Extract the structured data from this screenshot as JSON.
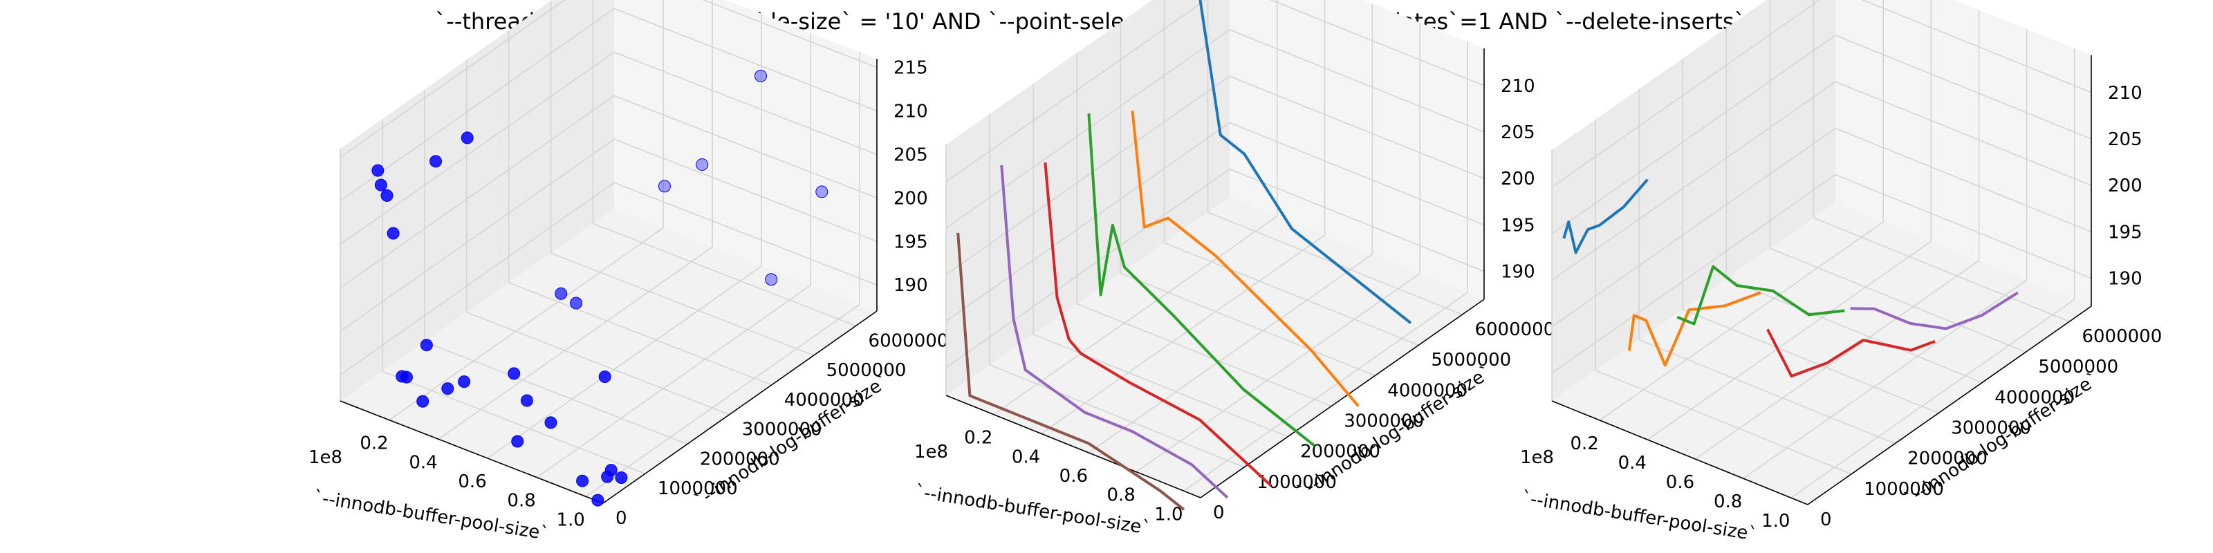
{
  "title": "`--threads` = '100' AND `--table-size` = '10'  AND `--point-selects`=1 AND `--index-updates`=1 AND `--delete-inserts`=1",
  "chart_data": [
    {
      "type": "scatter",
      "xlabel": "`--innodb-buffer-pool-size`",
      "ylabel": "`--innodb-log-buffer-size`",
      "x_offset": "1e8",
      "x_ticks": [
        "0.2",
        "0.4",
        "0.6",
        "0.8",
        "1.0"
      ],
      "y_ticks": [
        "0",
        "1000000",
        "2000000",
        "3000000",
        "4000000",
        "5000000",
        "6000000"
      ],
      "z_ticks": [
        "190",
        "195",
        "200",
        "205",
        "210",
        "215"
      ],
      "zlim": [
        187,
        216
      ],
      "point_color": "#0000ff",
      "points": [
        {
          "x": 0.05,
          "y": 600000,
          "z": 212
        },
        {
          "x": 0.07,
          "y": 700000,
          "z": 209
        },
        {
          "x": 0.08,
          "y": 500000,
          "z": 211
        },
        {
          "x": 0.13,
          "y": 500000,
          "z": 206
        },
        {
          "x": 0.2,
          "y": 1100000,
          "z": 213
        },
        {
          "x": 0.26,
          "y": 1500000,
          "z": 215
        },
        {
          "x": 0.15,
          "y": 700000,
          "z": 189
        },
        {
          "x": 0.18,
          "y": 1000000,
          "z": 192
        },
        {
          "x": 0.2,
          "y": 300000,
          "z": 191
        },
        {
          "x": 0.25,
          "y": 500000,
          "z": 188
        },
        {
          "x": 0.3,
          "y": 800000,
          "z": 189
        },
        {
          "x": 0.35,
          "y": 900000,
          "z": 190
        },
        {
          "x": 0.45,
          "y": 1500000,
          "z": 190
        },
        {
          "x": 0.47,
          "y": 2500000,
          "z": 196
        },
        {
          "x": 0.48,
          "y": 2800000,
          "z": 194
        },
        {
          "x": 0.52,
          "y": 1400000,
          "z": 188
        },
        {
          "x": 0.55,
          "y": 1000000,
          "z": 185
        },
        {
          "x": 0.6,
          "y": 1500000,
          "z": 186
        },
        {
          "x": 0.7,
          "y": 2200000,
          "z": 190
        },
        {
          "x": 0.9,
          "y": 500000,
          "z": 186
        },
        {
          "x": 0.95,
          "y": 800000,
          "z": 186
        },
        {
          "x": 0.98,
          "y": 400000,
          "z": 185
        },
        {
          "x": 0.99,
          "y": 900000,
          "z": 186
        },
        {
          "x": 1.0,
          "y": 600000,
          "z": 188
        },
        {
          "x": 0.6,
          "y": 4200000,
          "z": 204
        },
        {
          "x": 0.65,
          "y": 4800000,
          "z": 205
        },
        {
          "x": 0.7,
          "y": 5900000,
          "z": 212
        },
        {
          "x": 1.0,
          "y": 5600000,
          "z": 203
        },
        {
          "x": 1.0,
          "y": 4400000,
          "z": 197
        }
      ]
    },
    {
      "type": "line",
      "xlabel": "`--innodb-buffer-pool-size`",
      "ylabel": "`--innodb-log-buffer-size`",
      "x_offset": "1e8",
      "x_ticks": [
        "0.2",
        "0.4",
        "0.6",
        "0.8",
        "1.0"
      ],
      "y_ticks": [
        "0",
        "1000000",
        "2000000",
        "3000000",
        "4000000",
        "5000000",
        "6000000"
      ],
      "z_ticks": [
        "190",
        "195",
        "200",
        "205",
        "210"
      ],
      "zlim": [
        187,
        214
      ],
      "series": [
        {
          "color": "#1f77b4",
          "x": [
            0.1,
            0.2,
            0.3,
            0.5,
            0.8,
            1.0
          ],
          "y": [
            5200000,
            5200000,
            5200000,
            5200000,
            5200000,
            5200000
          ],
          "z": [
            216,
            200,
            199,
            193,
            190,
            188
          ]
        },
        {
          "color": "#ff7f0e",
          "x": [
            0.05,
            0.1,
            0.2,
            0.4,
            0.6,
            0.8,
            1.0
          ],
          "y": [
            4000000,
            4000000,
            4000000,
            4000000,
            4000000,
            4000000,
            4000000
          ],
          "z": [
            205,
            193,
            195,
            193,
            190,
            187,
            183
          ]
        },
        {
          "color": "#2ca02c",
          "x": [
            0.05,
            0.1,
            0.15,
            0.2,
            0.4,
            0.7,
            1.0
          ],
          "y": [
            3000000,
            3000000,
            3000000,
            3000000,
            3000000,
            3000000,
            3000000
          ],
          "z": [
            208,
            189,
            197,
            193,
            190,
            185,
            182
          ]
        },
        {
          "color": "#d62728",
          "x": [
            0.05,
            0.1,
            0.15,
            0.2,
            0.4,
            0.7,
            1.0
          ],
          "y": [
            2000000,
            2000000,
            2000000,
            2000000,
            2000000,
            2000000,
            2000000
          ],
          "z": [
            206,
            192,
            188,
            187,
            186,
            185,
            181
          ]
        },
        {
          "color": "#9467bd",
          "x": [
            0.05,
            0.1,
            0.15,
            0.4,
            0.6,
            0.85,
            1.0
          ],
          "y": [
            1000000,
            1000000,
            1000000,
            1000000,
            1000000,
            1000000,
            1000000
          ],
          "z": [
            209,
            193,
            188,
            186,
            186,
            185,
            183
          ]
        },
        {
          "color": "#8c564b",
          "x": [
            0.05,
            0.1,
            0.3,
            0.6,
            0.9,
            1.0
          ],
          "y": [
            0,
            0,
            0,
            0,
            0,
            0
          ],
          "z": [
            205,
            188,
            188,
            188,
            186,
            185
          ]
        }
      ]
    },
    {
      "type": "line",
      "xlabel": "`--innodb-buffer-pool-size`",
      "ylabel": "`--innodb-log-buffer-size`",
      "x_offset": "1e8",
      "x_ticks": [
        "0.2",
        "0.4",
        "0.6",
        "0.8",
        "1.0"
      ],
      "y_ticks": [
        "0",
        "1000000",
        "2000000",
        "3000000",
        "4000000",
        "5000000",
        "6000000"
      ],
      "z_ticks": [
        "190",
        "195",
        "200",
        "205",
        "210"
      ],
      "zlim": [
        187,
        214
      ],
      "series": [
        {
          "color": "#1f77b4",
          "x": [
            0.05,
            0.07,
            0.1,
            0.15,
            0.2,
            0.3,
            0.4
          ],
          "y": [
            0,
            0,
            0,
            0,
            0,
            0,
            0
          ],
          "z": [
            205,
            207,
            204,
            207,
            208,
            211,
            215
          ]
        },
        {
          "color": "#ff7f0e",
          "x": [
            0.05,
            0.07,
            0.12,
            0.2,
            0.3,
            0.45,
            0.6
          ],
          "y": [
            1500000,
            1500000,
            1500000,
            1500000,
            1500000,
            1500000,
            1500000
          ],
          "z": [
            188,
            192,
            192,
            188,
            195,
            197,
            200
          ]
        },
        {
          "color": "#2ca02c",
          "x": [
            0.05,
            0.12,
            0.2,
            0.3,
            0.45,
            0.6,
            0.75
          ],
          "y": [
            2600000,
            2600000,
            2600000,
            2600000,
            2600000,
            2600000,
            2600000
          ],
          "z": [
            188,
            188,
            195,
            194,
            195,
            194,
            196
          ]
        },
        {
          "color": "#d62728",
          "x": [
            0.3,
            0.4,
            0.55,
            0.7,
            0.9,
            1.0
          ],
          "y": [
            3300000,
            3300000,
            3300000,
            3300000,
            3300000,
            3300000
          ],
          "z": [
            187,
            183,
            186,
            190,
            191,
            193
          ]
        },
        {
          "color": "#9467bd",
          "x": [
            0.3,
            0.4,
            0.55,
            0.7,
            0.85,
            1.0
          ],
          "y": [
            5200000,
            5200000,
            5200000,
            5200000,
            5200000,
            5200000
          ],
          "z": [
            183,
            184,
            184,
            185,
            188,
            192
          ]
        }
      ]
    }
  ]
}
